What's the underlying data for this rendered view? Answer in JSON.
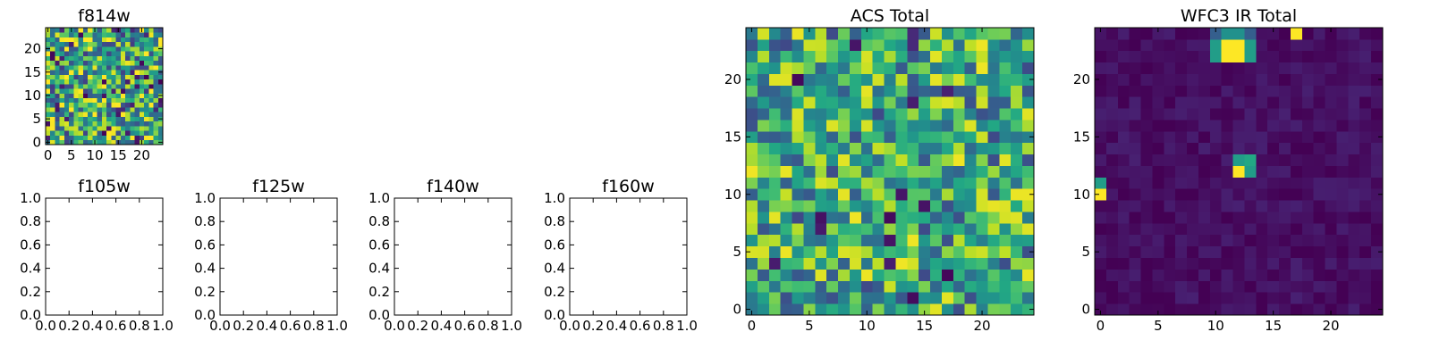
{
  "colormap": "viridis",
  "chart_data": [
    {
      "id": "f814w",
      "type": "heatmap",
      "title": "f814w",
      "grid": false,
      "xlim": [
        -0.5,
        24.5
      ],
      "ylim": [
        -0.5,
        24.5
      ],
      "xticks": [
        0,
        5,
        10,
        15,
        20
      ],
      "yticks": [
        0,
        5,
        10,
        15,
        20
      ],
      "xtick_labels": [
        "0",
        "5",
        "10",
        "15",
        "20"
      ],
      "ytick_labels": [
        "0",
        "5",
        "10",
        "15",
        "20"
      ],
      "grid_size": [
        25,
        25
      ],
      "value_range": [
        0,
        1
      ],
      "pattern": "random high values (mostly yellow-green) with scattered dark pixels",
      "seed": 3,
      "base": 0.62,
      "spread": 0.45,
      "dark_fraction": 0.06,
      "hotspots": []
    },
    {
      "id": "f105w",
      "type": "empty",
      "title": "f105w",
      "xlim": [
        0,
        1
      ],
      "ylim": [
        0,
        1
      ],
      "xticks": [
        0,
        0.2,
        0.4,
        0.6,
        0.8,
        1.0
      ],
      "yticks": [
        0,
        0.2,
        0.4,
        0.6,
        0.8,
        1.0
      ],
      "xtick_labels": [
        "0.0",
        "0.2",
        "0.4",
        "0.6",
        "0.8",
        "1.0"
      ],
      "ytick_labels": [
        "0.0",
        "0.2",
        "0.4",
        "0.6",
        "0.8",
        "1.0"
      ]
    },
    {
      "id": "f125w",
      "type": "empty",
      "title": "f125w",
      "xlim": [
        0,
        1
      ],
      "ylim": [
        0,
        1
      ],
      "xticks": [
        0,
        0.2,
        0.4,
        0.6,
        0.8,
        1.0
      ],
      "yticks": [
        0,
        0.2,
        0.4,
        0.6,
        0.8,
        1.0
      ],
      "xtick_labels": [
        "0.0",
        "0.2",
        "0.4",
        "0.6",
        "0.8",
        "1.0"
      ],
      "ytick_labels": [
        "0.0",
        "0.2",
        "0.4",
        "0.6",
        "0.8",
        "1.0"
      ]
    },
    {
      "id": "f140w",
      "type": "empty",
      "title": "f140w",
      "xlim": [
        0,
        1
      ],
      "ylim": [
        0,
        1
      ],
      "xticks": [
        0,
        0.2,
        0.4,
        0.6,
        0.8,
        1.0
      ],
      "yticks": [
        0,
        0.2,
        0.4,
        0.6,
        0.8,
        1.0
      ],
      "xtick_labels": [
        "0.0",
        "0.2",
        "0.4",
        "0.6",
        "0.8",
        "1.0"
      ],
      "ytick_labels": [
        "0.0",
        "0.2",
        "0.4",
        "0.6",
        "0.8",
        "1.0"
      ]
    },
    {
      "id": "f160w",
      "type": "empty",
      "title": "f160w",
      "xlim": [
        0,
        1
      ],
      "ylim": [
        0,
        1
      ],
      "xticks": [
        0,
        0.2,
        0.4,
        0.6,
        0.8,
        1.0
      ],
      "yticks": [
        0,
        0.2,
        0.4,
        0.6,
        0.8,
        1.0
      ],
      "xtick_labels": [
        "0.0",
        "0.2",
        "0.4",
        "0.6",
        "0.8",
        "1.0"
      ],
      "ytick_labels": [
        "0.0",
        "0.2",
        "0.4",
        "0.6",
        "0.8",
        "1.0"
      ]
    },
    {
      "id": "acs_total",
      "type": "heatmap",
      "title": "ACS Total",
      "grid": false,
      "xlim": [
        -0.5,
        24.5
      ],
      "ylim": [
        -0.5,
        24.5
      ],
      "xticks": [
        0,
        5,
        10,
        15,
        20
      ],
      "yticks": [
        0,
        5,
        10,
        15,
        20
      ],
      "xtick_labels": [
        "0",
        "5",
        "10",
        "15",
        "20"
      ],
      "ytick_labels": [
        "0",
        "5",
        "10",
        "15",
        "20"
      ],
      "grid_size": [
        25,
        25
      ],
      "value_range": [
        0,
        1
      ],
      "pattern": "random mid-to-high values (green/yellow) with a few dark pixels",
      "seed": 11,
      "base": 0.6,
      "spread": 0.38,
      "dark_fraction": 0.03,
      "hotspots": []
    },
    {
      "id": "wfc3_ir_total",
      "type": "heatmap",
      "title": "WFC3 IR Total",
      "grid": false,
      "xlim": [
        -0.5,
        24.5
      ],
      "ylim": [
        -0.5,
        24.5
      ],
      "xticks": [
        0,
        5,
        10,
        15,
        20
      ],
      "yticks": [
        0,
        5,
        10,
        15,
        20
      ],
      "xtick_labels": [
        "0",
        "5",
        "10",
        "15",
        "20"
      ],
      "ytick_labels": [
        "0",
        "5",
        "10",
        "15",
        "20"
      ],
      "grid_size": [
        25,
        25
      ],
      "value_range": [
        0,
        1
      ],
      "pattern": "low background (dark purple) with bright sources",
      "seed": 23,
      "base": 0.04,
      "spread": 0.05,
      "dark_fraction": 0.0,
      "hotspots": [
        {
          "x": 11,
          "y": 22,
          "value": 1.0
        },
        {
          "x": 12,
          "y": 22,
          "value": 1.0
        },
        {
          "x": 11,
          "y": 23,
          "value": 1.0
        },
        {
          "x": 12,
          "y": 23,
          "value": 1.0
        },
        {
          "x": 10,
          "y": 22,
          "value": 0.55
        },
        {
          "x": 13,
          "y": 22,
          "value": 0.55
        },
        {
          "x": 10,
          "y": 23,
          "value": 0.55
        },
        {
          "x": 13,
          "y": 23,
          "value": 0.55
        },
        {
          "x": 11,
          "y": 24,
          "value": 0.5
        },
        {
          "x": 12,
          "y": 24,
          "value": 0.5
        },
        {
          "x": 10,
          "y": 24,
          "value": 0.3
        },
        {
          "x": 13,
          "y": 24,
          "value": 0.3
        },
        {
          "x": 17,
          "y": 24,
          "value": 1.0
        },
        {
          "x": 12,
          "y": 12,
          "value": 1.0
        },
        {
          "x": 13,
          "y": 12,
          "value": 0.55
        },
        {
          "x": 12,
          "y": 13,
          "value": 0.55
        },
        {
          "x": 13,
          "y": 13,
          "value": 0.6
        },
        {
          "x": 0,
          "y": 10,
          "value": 1.0
        },
        {
          "x": 0,
          "y": 11,
          "value": 0.55
        }
      ]
    }
  ]
}
